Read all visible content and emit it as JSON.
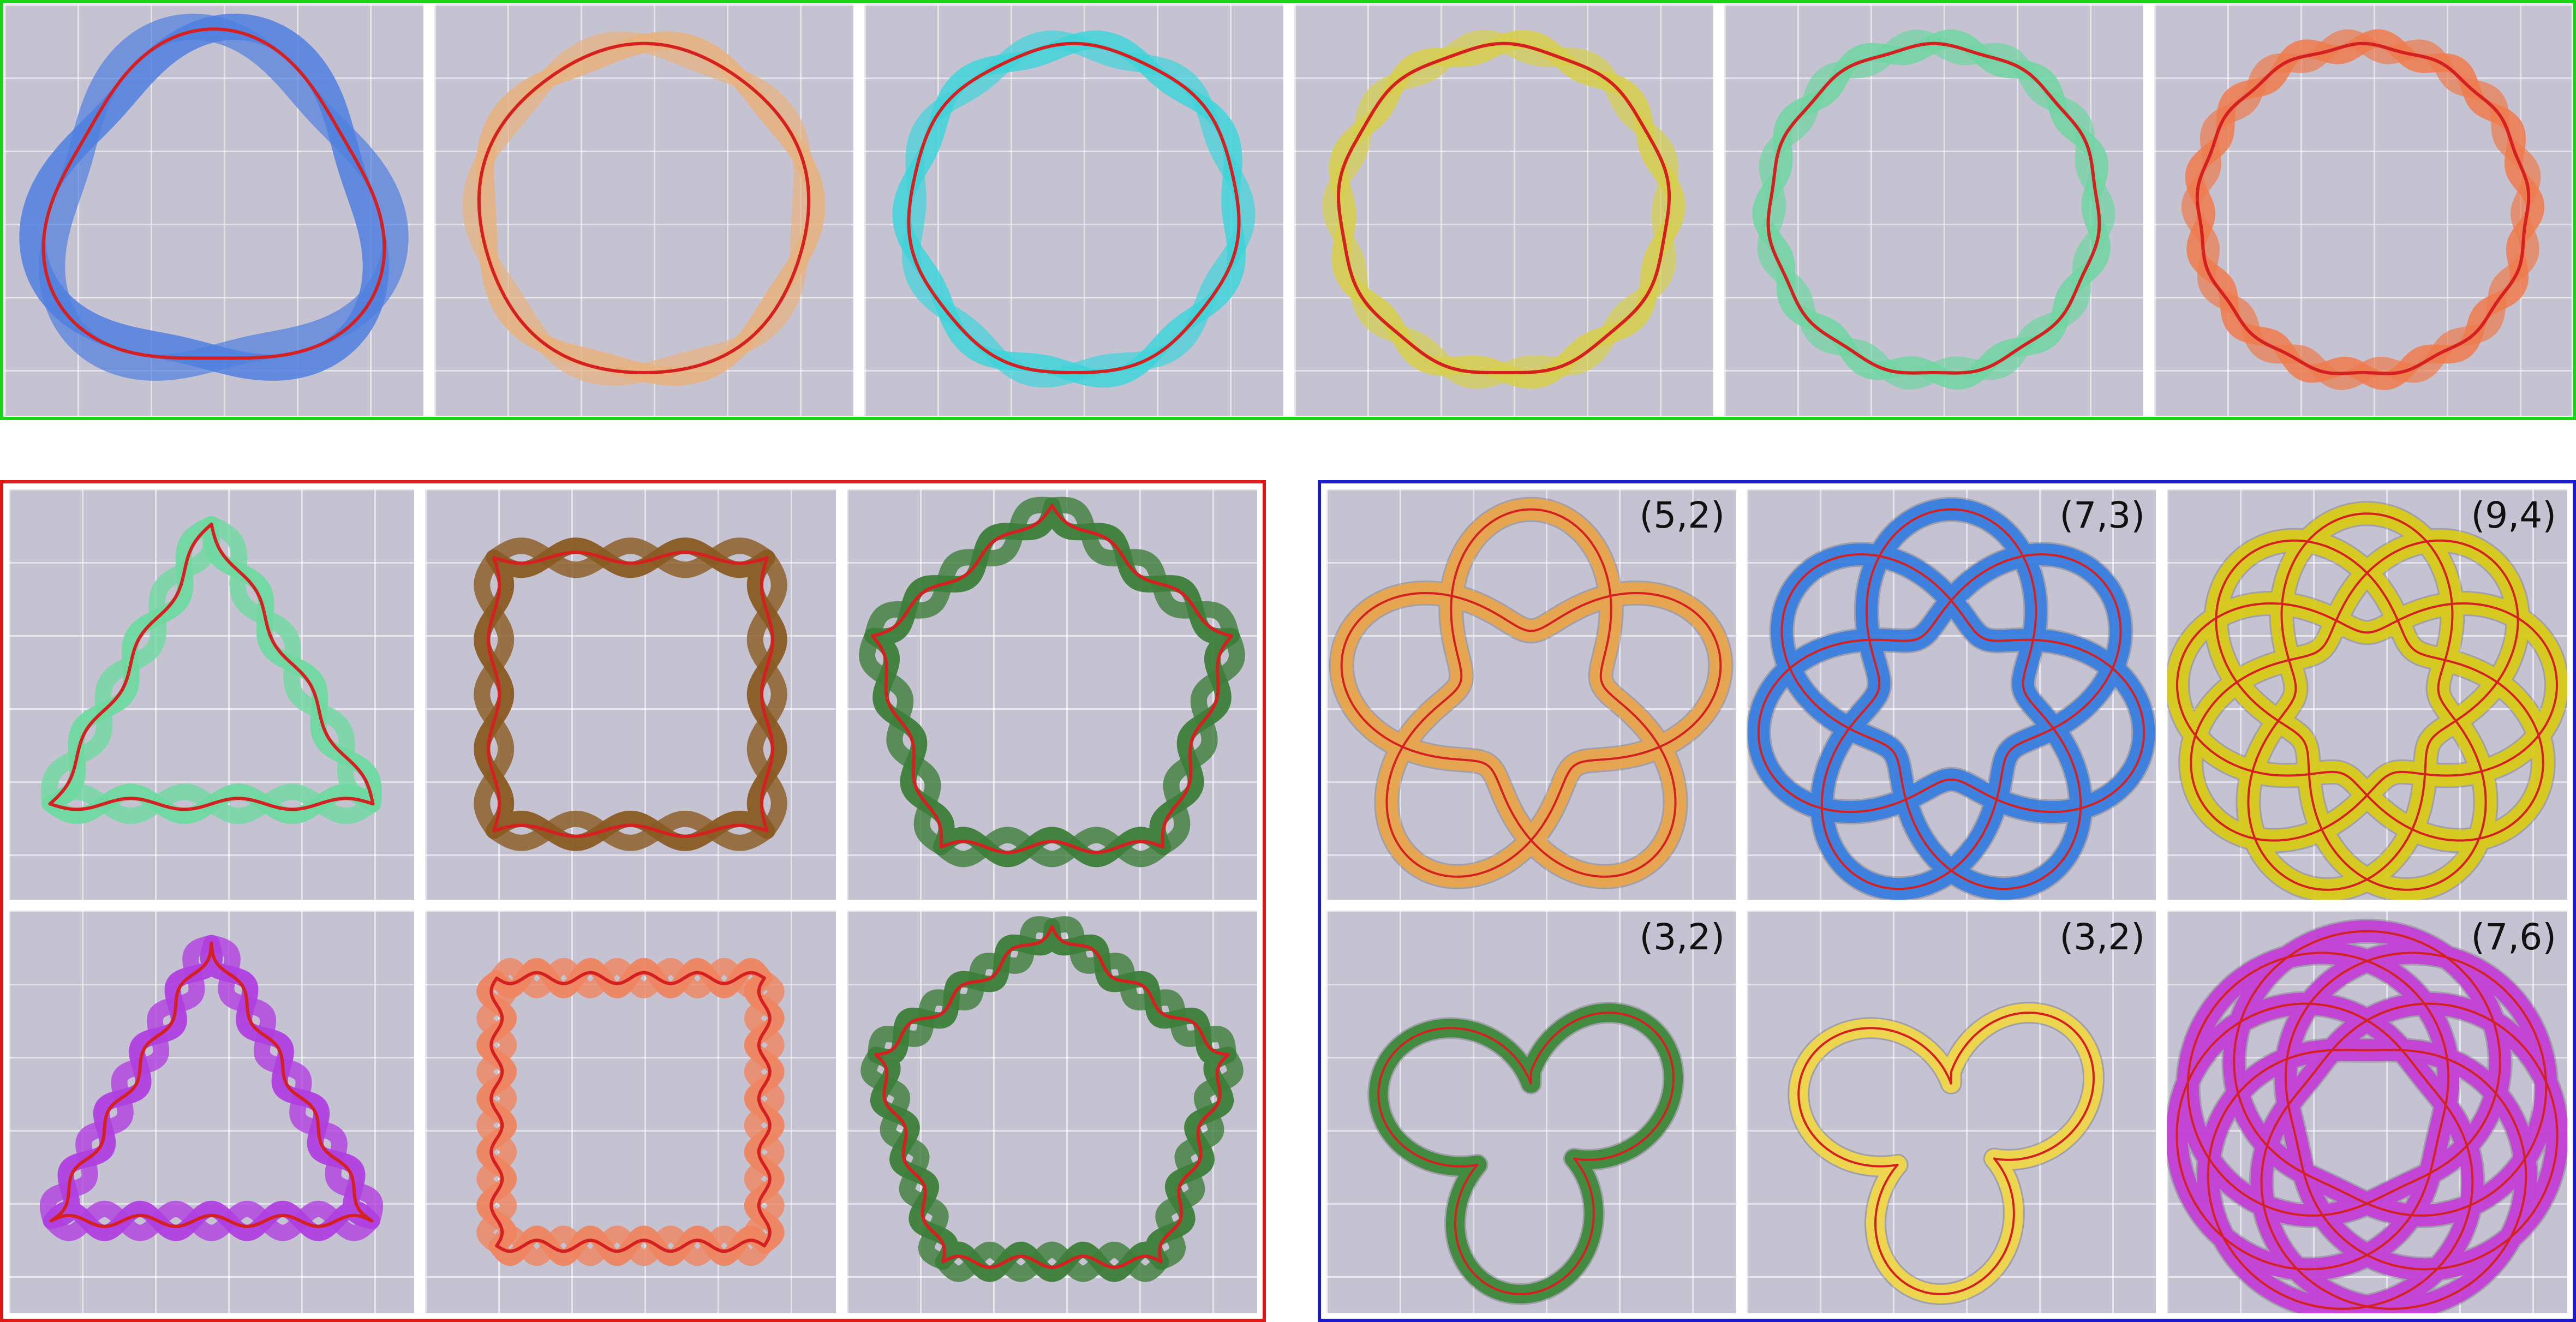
{
  "colors": {
    "centerline": "#d42020",
    "top_border": "#18d418",
    "left_border": "#e01818",
    "right_border": "#1a1ad0",
    "background": "#c5c3d2"
  },
  "top_row": [
    {
      "kind": "wavy_ring",
      "waves": 3,
      "color": "#4f7fe0"
    },
    {
      "kind": "wavy_ring",
      "waves": 5,
      "color": "#e8b27c"
    },
    {
      "kind": "wavy_ring",
      "waves": 7,
      "color": "#3fd4da"
    },
    {
      "kind": "wavy_ring",
      "waves": 9,
      "color": "#d6cf4a"
    },
    {
      "kind": "wavy_ring",
      "waves": 11,
      "color": "#6fd6a2"
    },
    {
      "kind": "wavy_ring",
      "waves": 13,
      "color": "#ee7a4c"
    }
  ],
  "left_grid": [
    {
      "kind": "polygon",
      "sides": 3,
      "lobes": 6,
      "color": "#6fd9a0"
    },
    {
      "kind": "polygon",
      "sides": 4,
      "lobes": 5,
      "color": "#8a5a22"
    },
    {
      "kind": "polygon",
      "sides": 5,
      "lobes": 5,
      "color": "#3d7e3a"
    },
    {
      "kind": "polygon",
      "sides": 3,
      "lobes": 9,
      "color": "#b040e0"
    },
    {
      "kind": "polygon",
      "sides": 4,
      "lobes": 10,
      "color": "#ef8560"
    },
    {
      "kind": "polygon",
      "sides": 5,
      "lobes": 7,
      "color": "#3d7e3a"
    }
  ],
  "right_grid": [
    {
      "kind": "torus_knot",
      "p": 5,
      "q": 2,
      "label": "(5,2)",
      "color": "#eaa64c"
    },
    {
      "kind": "torus_knot",
      "p": 7,
      "q": 3,
      "label": "(7,3)",
      "color": "#3a7fe0"
    },
    {
      "kind": "torus_knot",
      "p": 9,
      "q": 4,
      "label": "(9,4)",
      "color": "#d9cb1a"
    },
    {
      "kind": "trefoil",
      "label": "(3,2)",
      "color": "#3d8a3a"
    },
    {
      "kind": "trefoil",
      "label": "(3,2)",
      "color": "#f2d84a"
    },
    {
      "kind": "torus_knot",
      "p": 7,
      "q": 6,
      "label": "(7,6)",
      "color": "#c440d8"
    }
  ]
}
